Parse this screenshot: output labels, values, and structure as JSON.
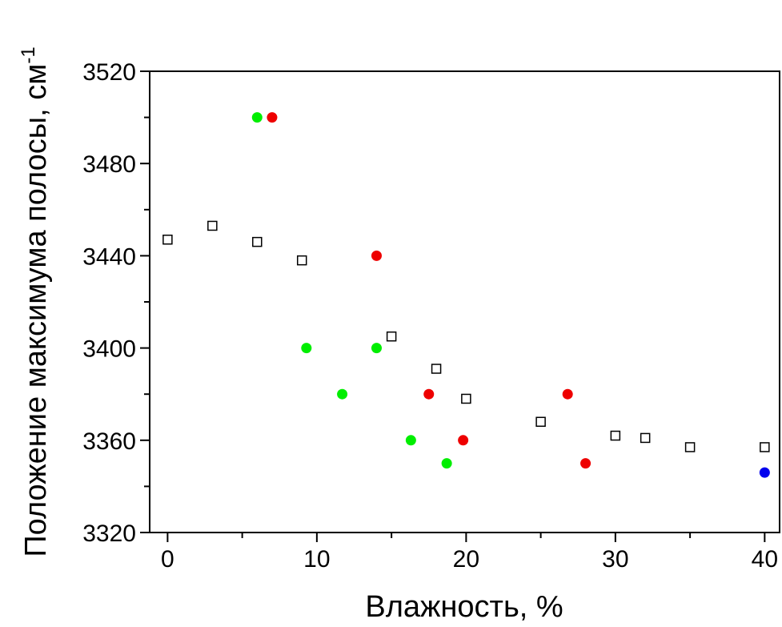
{
  "chart_data": {
    "type": "scatter",
    "xlabel": "Влажность, %",
    "ylabel": "Положение максимума полосы, см",
    "ylabel_sup": "-1",
    "xlim": [
      -1.2,
      41
    ],
    "ylim": [
      3320,
      3520
    ],
    "xticks": [
      0,
      10,
      20,
      30,
      40
    ],
    "yticks": [
      3320,
      3360,
      3400,
      3440,
      3480,
      3520
    ],
    "x_minor_step": 5,
    "y_minor_step": 20,
    "grid": false,
    "legend": "none",
    "series": [
      {
        "marker": "open-square",
        "color": "#000000",
        "points": [
          [
            0,
            3447
          ],
          [
            3,
            3453
          ],
          [
            6,
            3446
          ],
          [
            9,
            3438
          ],
          [
            15,
            3405
          ],
          [
            18,
            3391
          ],
          [
            20,
            3378
          ],
          [
            25,
            3368
          ],
          [
            30,
            3362
          ],
          [
            32,
            3361
          ],
          [
            35,
            3357
          ],
          [
            40,
            3357
          ]
        ]
      },
      {
        "marker": "filled-circle",
        "color": "#00ee00",
        "points": [
          [
            6,
            3500
          ],
          [
            9.3,
            3400
          ],
          [
            11.7,
            3380
          ],
          [
            14,
            3400
          ],
          [
            16.3,
            3360
          ],
          [
            18.7,
            3350
          ]
        ]
      },
      {
        "marker": "filled-circle",
        "color": "#ee0000",
        "points": [
          [
            7,
            3500
          ],
          [
            14,
            3440
          ],
          [
            17.5,
            3380
          ],
          [
            19.8,
            3360
          ],
          [
            26.8,
            3380
          ],
          [
            28,
            3350
          ]
        ]
      },
      {
        "marker": "filled-circle",
        "color": "#0000ee",
        "points": [
          [
            40,
            3346
          ]
        ]
      }
    ]
  }
}
